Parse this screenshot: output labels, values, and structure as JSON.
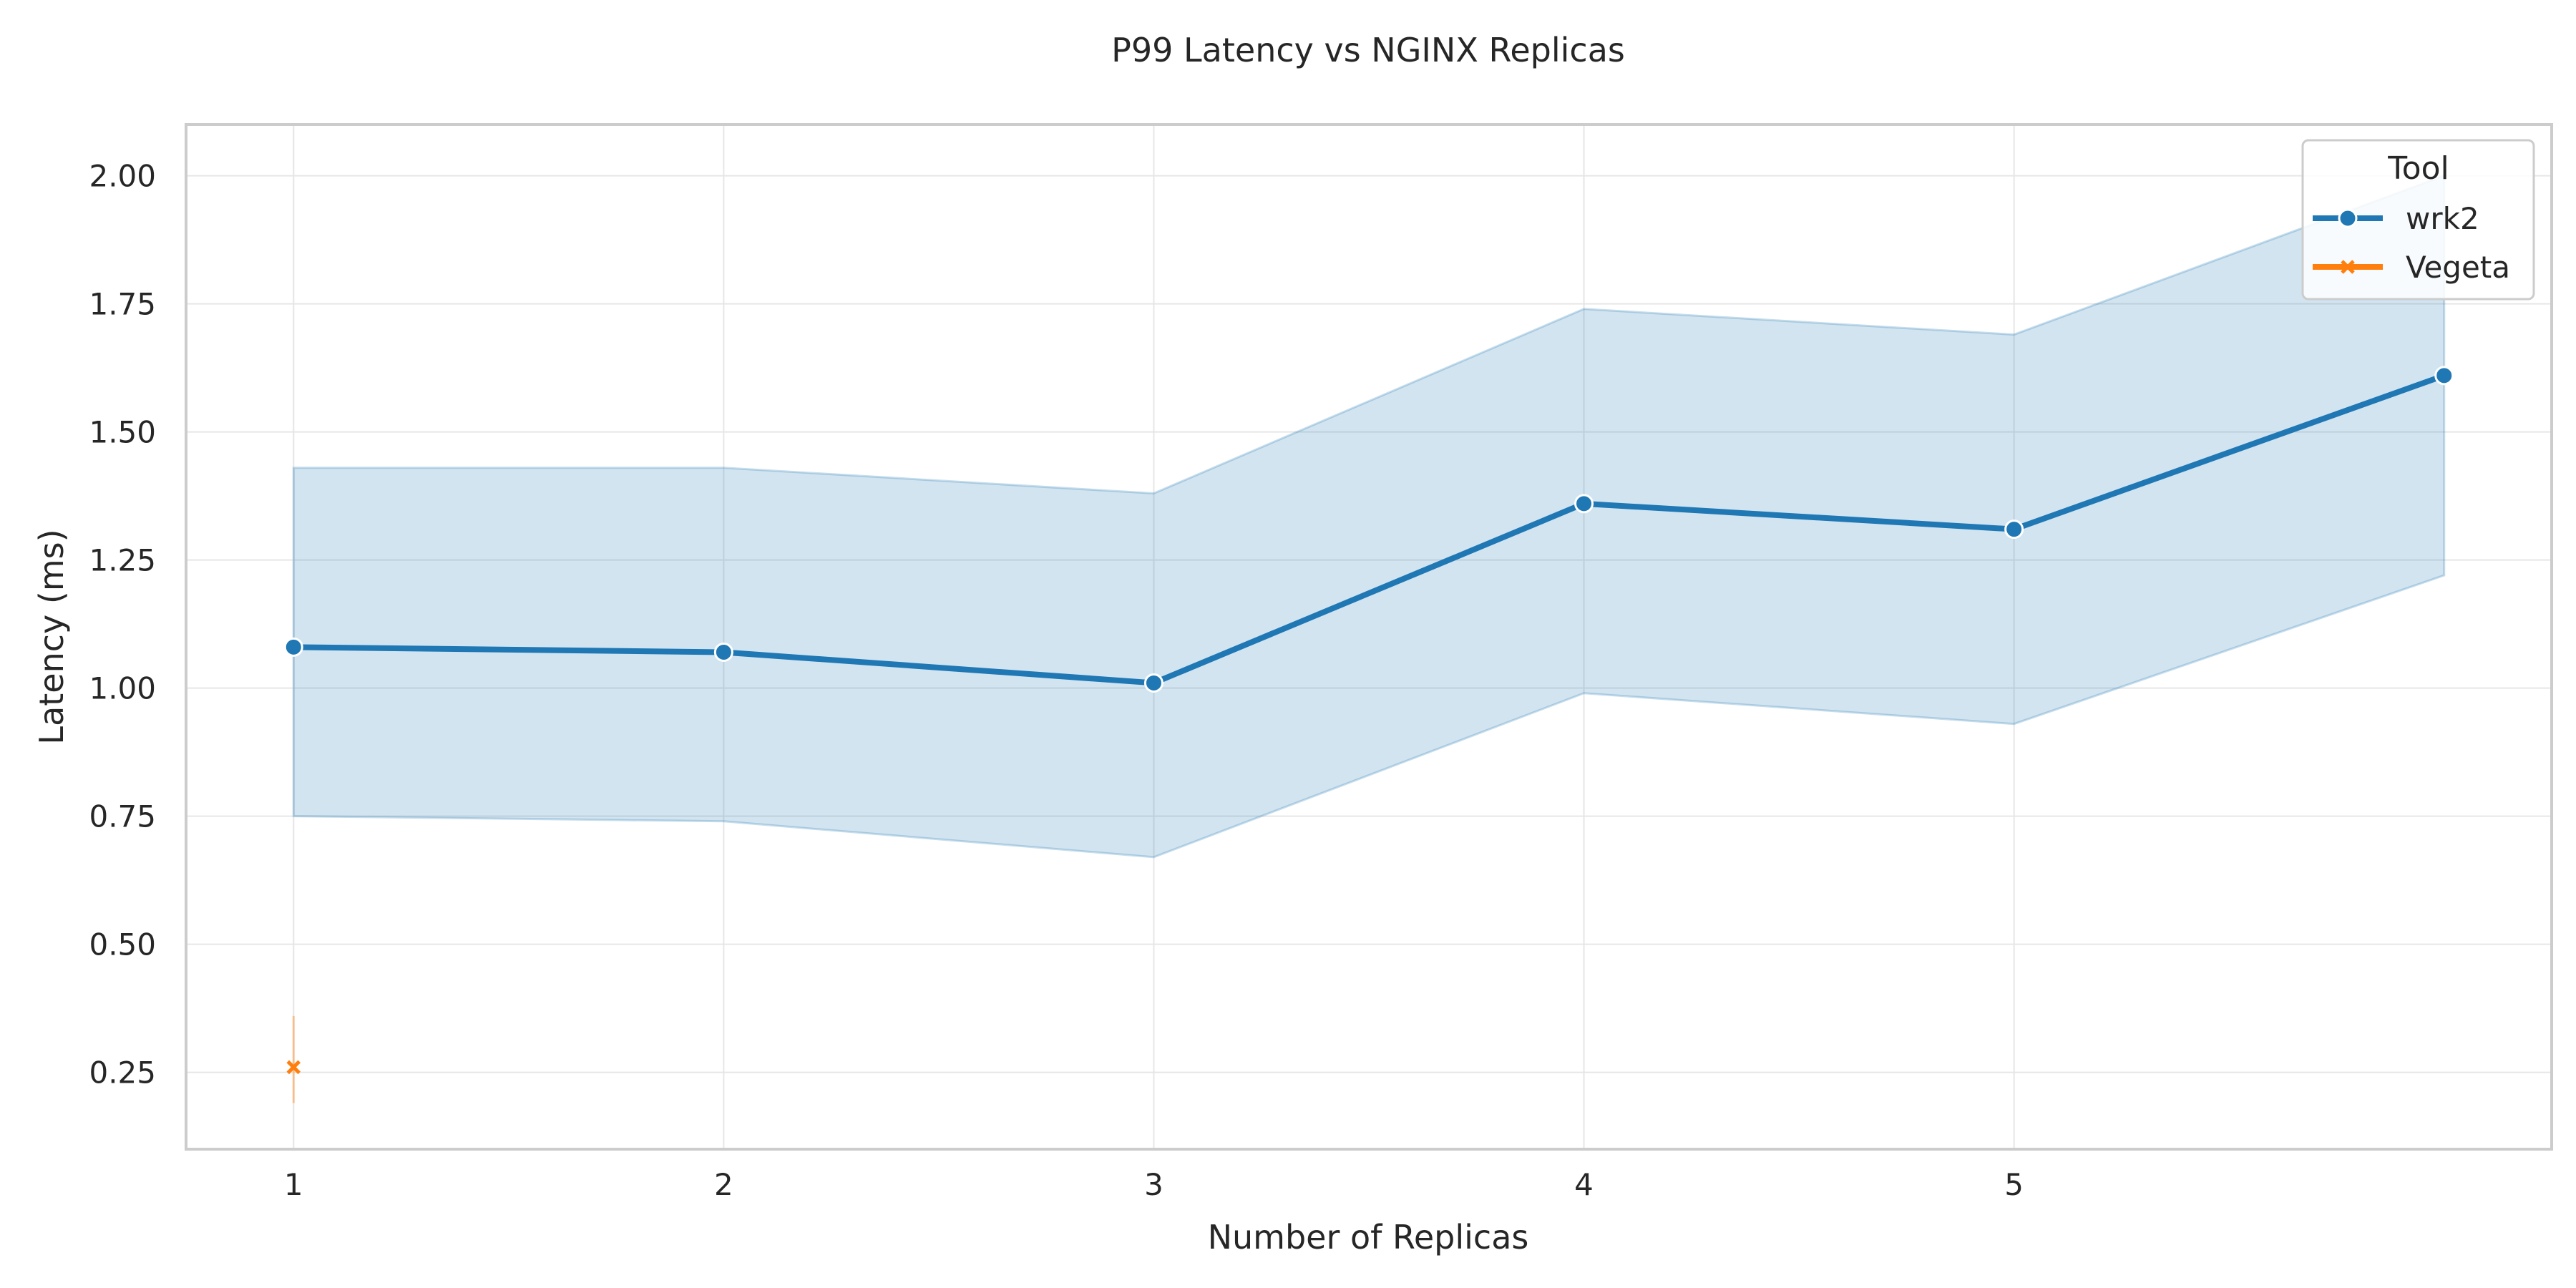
{
  "chart_data": {
    "type": "line",
    "title": "P99 Latency vs NGINX Replicas",
    "xlabel": "Number of Replicas",
    "ylabel": "Latency (ms)",
    "xlim": [
      0.75,
      6.25
    ],
    "ylim": [
      0.1,
      2.1
    ],
    "xticks": [
      1,
      2,
      3,
      4,
      5
    ],
    "yticks": [
      0.25,
      0.5,
      0.75,
      1.0,
      1.25,
      1.5,
      1.75,
      2.0
    ],
    "ytick_labels": [
      "0.25",
      "0.50",
      "0.75",
      "1.00",
      "1.25",
      "1.50",
      "1.75",
      "2.00"
    ],
    "grid": true,
    "legend": {
      "title": "Tool",
      "placement": "top-right"
    },
    "series": [
      {
        "name": "wrk2",
        "color": "#1f77b4",
        "marker": "circle",
        "x": [
          1,
          2,
          3,
          4,
          5,
          6
        ],
        "y": [
          1.08,
          1.07,
          1.01,
          1.36,
          1.31,
          1.61
        ],
        "ci_low": [
          0.75,
          0.74,
          0.67,
          0.99,
          0.93,
          1.22
        ],
        "ci_high": [
          1.43,
          1.43,
          1.38,
          1.74,
          1.69,
          2.0
        ]
      },
      {
        "name": "Vegeta",
        "color": "#ff7f0e",
        "marker": "x",
        "x": [
          1
        ],
        "y": [
          0.26
        ],
        "ci_low": [
          0.19
        ],
        "ci_high": [
          0.36
        ]
      }
    ]
  }
}
